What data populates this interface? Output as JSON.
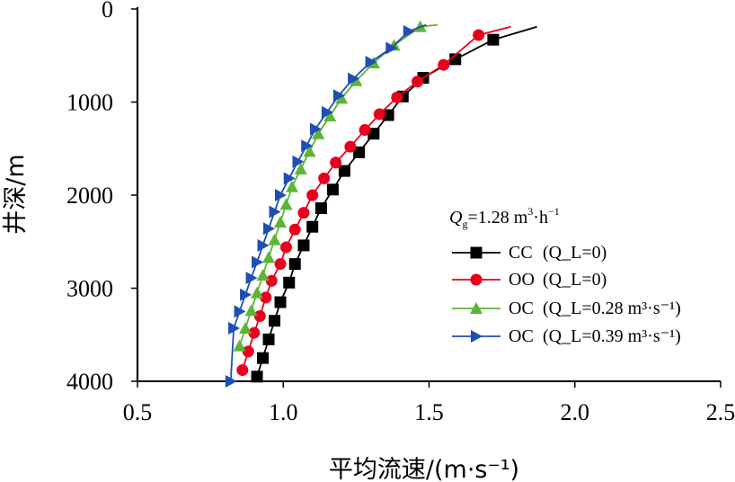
{
  "chart_data": {
    "type": "line",
    "xlabel": "平均流速/(m·s⁻¹)",
    "ylabel": "井深/m",
    "xlim": [
      0.5,
      2.5
    ],
    "ylim": [
      0,
      4000
    ],
    "y_inverted": true,
    "xticks": [
      "0.5",
      "1.0",
      "1.5",
      "2.0",
      "2.5"
    ],
    "yticks": [
      "0",
      "1000",
      "2000",
      "3000",
      "4000"
    ],
    "grid": false,
    "legend_position": "center-right",
    "legend_title": {
      "q": "Q",
      "sub": "g",
      "text": "=1.28 m",
      "sup": "3",
      "text2": "·h",
      "sup2": "−1"
    },
    "series": [
      {
        "name": "CC",
        "condition": "(Q_L=0)",
        "color": "#000000",
        "marker": "square",
        "x": [
          1.87,
          1.72,
          1.59,
          1.48,
          1.41,
          1.36,
          1.31,
          1.26,
          1.21,
          1.17,
          1.13,
          1.1,
          1.07,
          1.04,
          1.02,
          0.99,
          0.97,
          0.95,
          0.93,
          0.91
        ],
        "y": [
          190,
          330,
          540,
          740,
          940,
          1140,
          1340,
          1540,
          1740,
          1940,
          2140,
          2340,
          2540,
          2740,
          2940,
          3150,
          3350,
          3550,
          3750,
          3950
        ]
      },
      {
        "name": "OO",
        "condition": "(Q_L=0)",
        "color": "#e8001c",
        "marker": "circle",
        "x": [
          1.78,
          1.67,
          1.55,
          1.46,
          1.39,
          1.33,
          1.28,
          1.23,
          1.18,
          1.14,
          1.1,
          1.07,
          1.04,
          1.01,
          0.99,
          0.96,
          0.94,
          0.92,
          0.9,
          0.88,
          0.86
        ],
        "y": [
          190,
          280,
          600,
          780,
          950,
          1130,
          1300,
          1480,
          1650,
          1820,
          2000,
          2190,
          2370,
          2560,
          2740,
          2920,
          3100,
          3300,
          3480,
          3680,
          3880
        ]
      },
      {
        "name": "OC",
        "condition": "(Q_L=0.28 m³·s⁻¹)",
        "color": "#5db535",
        "marker": "triangle-up",
        "x": [
          1.53,
          1.47,
          1.38,
          1.31,
          1.25,
          1.2,
          1.16,
          1.12,
          1.09,
          1.06,
          1.03,
          1.01,
          0.99,
          0.97,
          0.95,
          0.93,
          0.91,
          0.89,
          0.87,
          0.85
        ],
        "y": [
          170,
          190,
          390,
          580,
          770,
          960,
          1150,
          1340,
          1530,
          1720,
          1910,
          2100,
          2290,
          2480,
          2670,
          2860,
          3050,
          3240,
          3430,
          3620
        ]
      },
      {
        "name": "OC",
        "condition": "(Q_L=0.39 m³·s⁻¹)",
        "color": "#1f4fb5",
        "marker": "triangle-right",
        "x": [
          1.49,
          1.43,
          1.37,
          1.3,
          1.24,
          1.19,
          1.15,
          1.11,
          1.08,
          1.05,
          1.02,
          0.99,
          0.97,
          0.95,
          0.93,
          0.91,
          0.89,
          0.87,
          0.85,
          0.83,
          0.82
        ],
        "y": [
          170,
          240,
          420,
          570,
          750,
          930,
          1110,
          1290,
          1470,
          1640,
          1820,
          2000,
          2180,
          2360,
          2540,
          2720,
          2890,
          3070,
          3250,
          3430,
          4000
        ]
      }
    ]
  }
}
